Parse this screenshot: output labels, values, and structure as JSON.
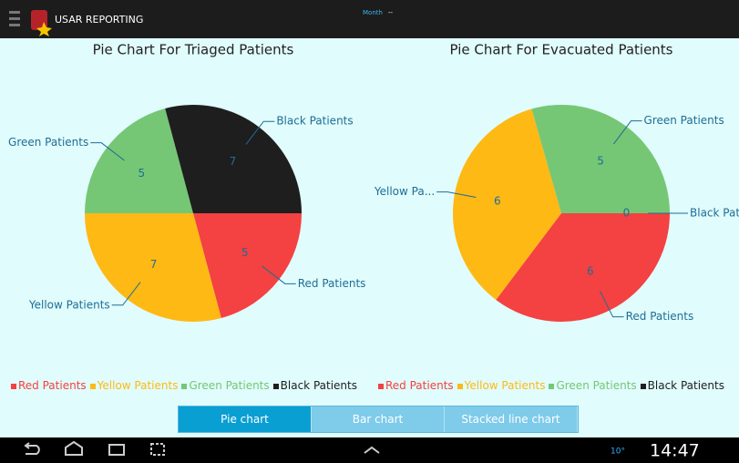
{
  "app": {
    "title": "USAR REPORTING",
    "filter_label": "Month",
    "filter_value": "--"
  },
  "chart_data": [
    {
      "type": "pie",
      "title": "Pie Chart For Triaged Patients",
      "categories": [
        "Red Patients",
        "Yellow Patients",
        "Green Patients",
        "Black Patients"
      ],
      "slice_labels": [
        "Red Patients",
        "Yellow Patients",
        "Green Patients",
        "Black Patients"
      ],
      "values": [
        5,
        7,
        5,
        7
      ],
      "colors": [
        "#f44141",
        "#ffb914",
        "#75c775",
        "#1e1e1e"
      ],
      "legend": "bottom"
    },
    {
      "type": "pie",
      "title": "Pie Chart For Evacuated Patients",
      "categories": [
        "Red Patients",
        "Yellow Patients",
        "Green Patients",
        "Black Patients"
      ],
      "slice_labels": [
        "Red Patients",
        "Yellow Pa...",
        "Green Patients",
        "Black Pat..."
      ],
      "values": [
        6,
        6,
        5,
        0
      ],
      "colors": [
        "#f44141",
        "#ffb914",
        "#75c775",
        "#1e1e1e"
      ],
      "legend": "bottom"
    }
  ],
  "tabs": [
    "Pie chart",
    "Bar chart",
    "Stacked line chart"
  ],
  "selected_tab": 0,
  "status": {
    "temperature": "10°",
    "time": "14:47"
  }
}
